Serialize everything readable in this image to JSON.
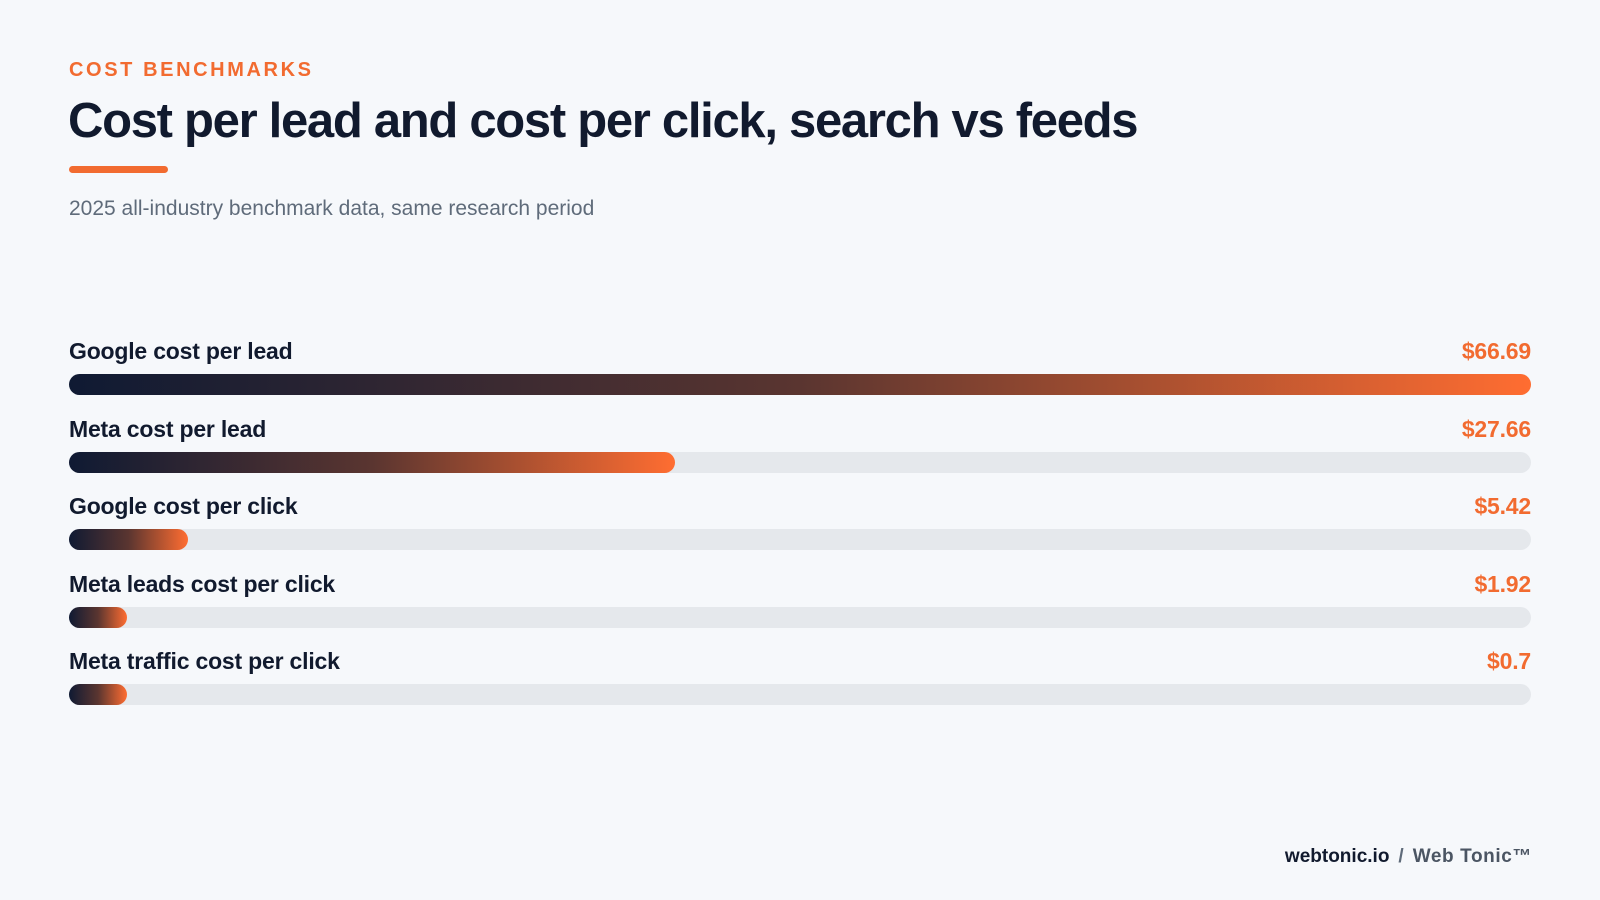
{
  "header": {
    "eyebrow": "COST BENCHMARKS",
    "title": "Cost per lead and cost per click, search vs feeds",
    "subtitle": "2025 all-industry benchmark data, same research period"
  },
  "chart_data": {
    "type": "bar",
    "orientation": "horizontal",
    "categories": [
      "Google cost per lead",
      "Meta cost per lead",
      "Google cost per click",
      "Meta leads cost per click",
      "Meta traffic cost per click"
    ],
    "values": [
      66.69,
      27.66,
      5.42,
      1.92,
      0.7
    ],
    "value_labels": [
      "$66.69",
      "$27.66",
      "$5.42",
      "$1.92",
      "$0.7"
    ],
    "xlim": [
      0,
      66.69
    ],
    "grid": false,
    "colors": {
      "gradient_start": "#0f1a33",
      "gradient_end": "#ff6d31",
      "track": "#e5e8ec",
      "value_text": "#f26b30"
    }
  },
  "footer": {
    "domain": "webtonic.io",
    "separator": "/",
    "brand": "Web Tonic™"
  }
}
